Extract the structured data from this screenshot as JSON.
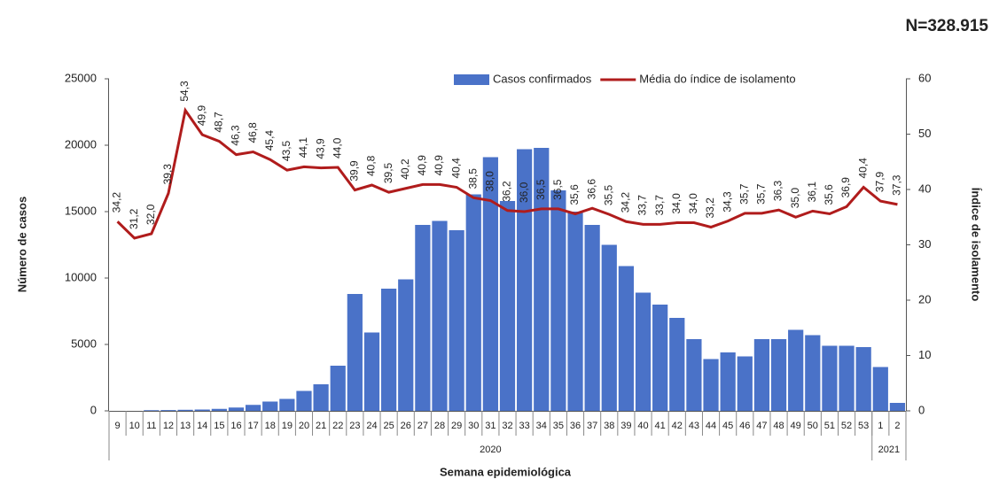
{
  "chart_data": {
    "type": "bar",
    "note_top_right": "N=328.915",
    "x_label": "Semana epidemiológica",
    "y_label": "Número de casos",
    "y2_label": "Índice de isolamento",
    "categories": [
      "9",
      "10",
      "11",
      "12",
      "13",
      "14",
      "15",
      "16",
      "17",
      "18",
      "19",
      "20",
      "21",
      "22",
      "23",
      "24",
      "25",
      "26",
      "27",
      "28",
      "29",
      "30",
      "31",
      "32",
      "33",
      "34",
      "35",
      "36",
      "37",
      "38",
      "39",
      "40",
      "41",
      "42",
      "43",
      "44",
      "45",
      "46",
      "47",
      "48",
      "49",
      "50",
      "51",
      "52",
      "53",
      "1",
      "2"
    ],
    "x_groups": [
      {
        "label": "2020",
        "count": 45
      },
      {
        "label": "2021",
        "count": 2
      }
    ],
    "series": [
      {
        "name": "Casos confirmados",
        "type": "bar",
        "color": "#4a72c8",
        "values": [
          0,
          0,
          50,
          60,
          80,
          100,
          150,
          250,
          450,
          700,
          900,
          1500,
          2000,
          3400,
          8800,
          5900,
          9200,
          9900,
          14000,
          14300,
          13600,
          16300,
          19100,
          15800,
          19700,
          19800,
          16600,
          15000,
          14000,
          12500,
          10900,
          8900,
          8000,
          7000,
          5400,
          3900,
          4400,
          4100,
          5400,
          5400,
          6100,
          5700,
          4900,
          4900,
          4800,
          3300,
          600
        ]
      },
      {
        "name": "Média do índice de isolamento",
        "type": "line",
        "axis": "y2",
        "color": "#b01c1c",
        "values": [
          34.2,
          31.2,
          32.0,
          39.3,
          54.3,
          49.9,
          48.7,
          46.3,
          46.8,
          45.4,
          43.5,
          44.1,
          43.9,
          44.0,
          39.9,
          40.8,
          39.5,
          40.2,
          40.9,
          40.9,
          40.4,
          38.5,
          38.0,
          36.2,
          36.0,
          36.5,
          36.5,
          35.6,
          36.6,
          35.5,
          34.2,
          33.7,
          33.7,
          34.0,
          34.0,
          33.2,
          34.3,
          35.7,
          35.7,
          36.3,
          35.0,
          36.1,
          35.6,
          36.9,
          40.4,
          37.9,
          37.3
        ],
        "value_labels": [
          "34,2",
          "31,2",
          "32,0",
          "39,3",
          "54,3",
          "49,9",
          "48,7",
          "46,3",
          "46,8",
          "45,4",
          "43,5",
          "44,1",
          "43,9",
          "44,0",
          "39,9",
          "40,8",
          "39,5",
          "40,2",
          "40,9",
          "40,9",
          "40,4",
          "38,5",
          "38,0",
          "36,2",
          "36,0",
          "36,5",
          "36,5",
          "35,6",
          "36,6",
          "35,5",
          "34,2",
          "33,7",
          "33,7",
          "34,0",
          "34,0",
          "33,2",
          "34,3",
          "35,7",
          "35,7",
          "36,3",
          "35,0",
          "36,1",
          "35,6",
          "36,9",
          "40,4",
          "37,9",
          "37,3"
        ]
      }
    ],
    "ylim": [
      0,
      25000
    ],
    "yticks": [
      0,
      5000,
      10000,
      15000,
      20000,
      25000
    ],
    "y2lim": [
      0,
      60
    ],
    "y2ticks": [
      0,
      10,
      20,
      30,
      40,
      50,
      60
    ],
    "legend": "top-right",
    "grid": false
  }
}
